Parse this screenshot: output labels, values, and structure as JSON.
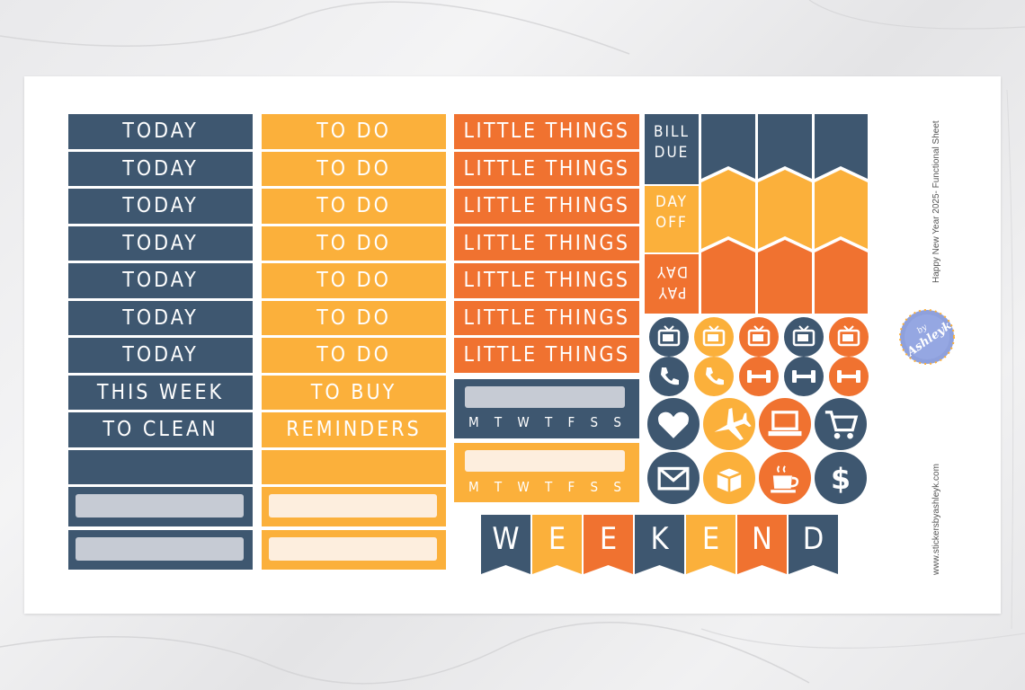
{
  "colors": {
    "navy": "#3e5770",
    "yellow": "#fbb03b",
    "orange": "#f07230",
    "grey": "#c6cbd4",
    "cream": "#fdeede"
  },
  "col1": {
    "labels": [
      "TODAY",
      "TODAY",
      "TODAY",
      "TODAY",
      "TODAY",
      "TODAY",
      "TODAY",
      "THIS WEEK",
      "TO CLEAN"
    ]
  },
  "col2": {
    "labels": [
      "TO DO",
      "TO DO",
      "TO DO",
      "TO DO",
      "TO DO",
      "TO DO",
      "TO DO",
      "TO BUY",
      "REMINDERS"
    ]
  },
  "col3": {
    "labels": [
      "LITTLE THINGS",
      "LITTLE THINGS",
      "LITTLE THINGS",
      "LITTLE THINGS",
      "LITTLE THINGS",
      "LITTLE THINGS",
      "LITTLE THINGS"
    ],
    "weekdays": [
      "M",
      "T",
      "W",
      "T",
      "F",
      "S",
      "S"
    ]
  },
  "flags": {
    "bill_due_1": "BILL",
    "bill_due_2": "DUE",
    "day_off_1": "DAY",
    "day_off_2": "OFF",
    "pay_day_1": "PAY",
    "pay_day_2": "DAY"
  },
  "icons": [
    "tv-icon",
    "tv-icon",
    "tv-icon",
    "tv-icon",
    "tv-icon",
    "phone-icon",
    "phone-icon",
    "dumbbell-icon",
    "dumbbell-icon",
    "dumbbell-icon",
    "heart-icon",
    "airplane-icon",
    "laptop-icon",
    "cart-icon",
    "envelope-icon",
    "box-icon",
    "coffee-icon",
    "dollar-icon"
  ],
  "weekend_letters": [
    "W",
    "E",
    "E",
    "K",
    "E",
    "N",
    "D"
  ],
  "sidebar": {
    "title": "Happy New Year 2025- Functional Sheet",
    "website": "www.stickersbyashleyk.com",
    "badge_by": "by",
    "badge_name": "Ashleyk"
  }
}
